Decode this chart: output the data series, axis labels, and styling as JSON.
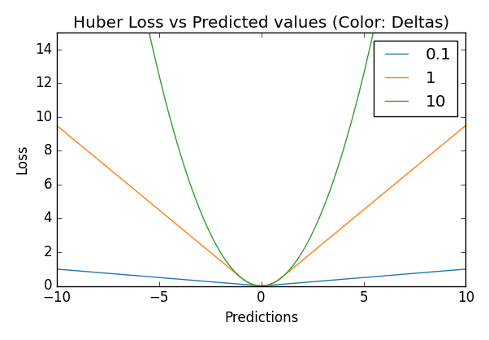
{
  "title": "Huber Loss vs Predicted values (Color: Deltas)",
  "xlabel": "Predictions",
  "ylabel": "Loss",
  "xlim": [
    -10,
    10
  ],
  "ylim": [
    0,
    15
  ],
  "deltas": [
    0.1,
    1,
    10
  ],
  "legend_labels": [
    "0.1",
    "1",
    "10"
  ],
  "colors": [
    "#1f77b4",
    "#ff7f0e",
    "#2ca02c"
  ],
  "x_range": [
    -10,
    10
  ],
  "num_points": 1000,
  "true_value": 0,
  "style": "classic"
}
